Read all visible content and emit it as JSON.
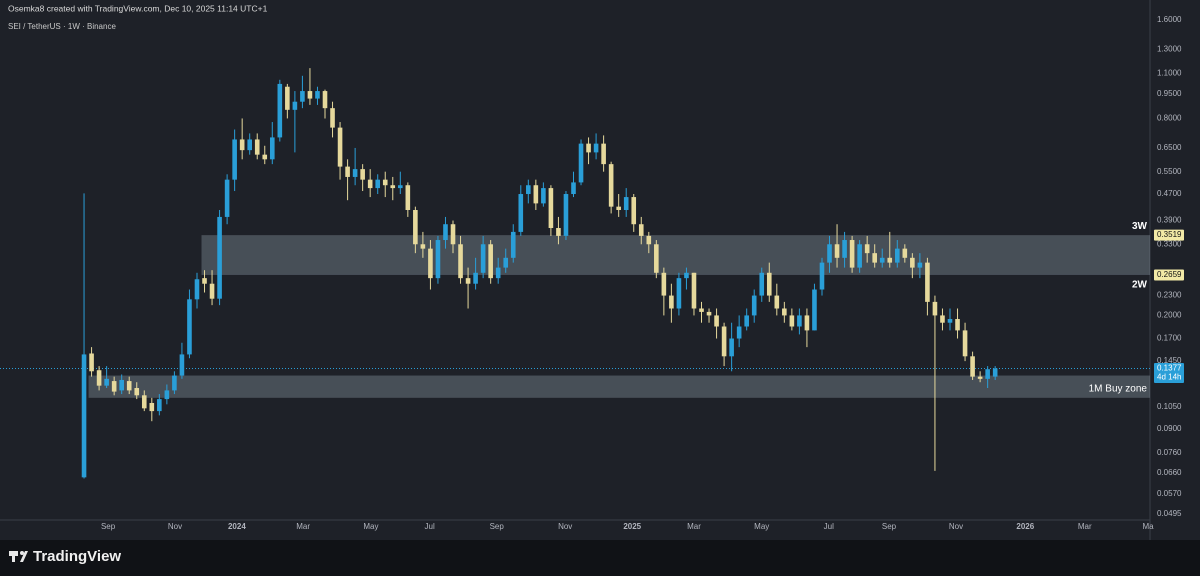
{
  "header": {
    "caption": "Osemka8 created with TradingView.com, Dec 10, 2025 11:14 UTC+1",
    "symbol": "SEI / TetherUS · 1W · Binance"
  },
  "footer": {
    "brand": "TradingView"
  },
  "chart_data": {
    "type": "candlestick",
    "up_color": "#2a9fd8",
    "down_color": "#e6d99c",
    "log_scale": true,
    "candles": [
      [
        0.064,
        0.472,
        0.0635,
        0.152
      ],
      [
        0.153,
        0.16,
        0.13,
        0.135
      ],
      [
        0.136,
        0.14,
        0.118,
        0.122
      ],
      [
        0.122,
        0.14,
        0.12,
        0.128
      ],
      [
        0.126,
        0.13,
        0.114,
        0.117
      ],
      [
        0.118,
        0.132,
        0.115,
        0.127
      ],
      [
        0.126,
        0.13,
        0.115,
        0.118
      ],
      [
        0.12,
        0.125,
        0.111,
        0.114
      ],
      [
        0.114,
        0.118,
        0.102,
        0.104
      ],
      [
        0.108,
        0.112,
        0.095,
        0.102
      ],
      [
        0.102,
        0.115,
        0.099,
        0.111
      ],
      [
        0.111,
        0.123,
        0.107,
        0.118
      ],
      [
        0.118,
        0.135,
        0.115,
        0.131
      ],
      [
        0.131,
        0.165,
        0.128,
        0.152
      ],
      [
        0.152,
        0.24,
        0.148,
        0.224
      ],
      [
        0.224,
        0.27,
        0.21,
        0.258
      ],
      [
        0.26,
        0.275,
        0.235,
        0.25
      ],
      [
        0.25,
        0.275,
        0.215,
        0.225
      ],
      [
        0.225,
        0.42,
        0.215,
        0.4
      ],
      [
        0.4,
        0.54,
        0.38,
        0.52
      ],
      [
        0.52,
        0.74,
        0.48,
        0.69
      ],
      [
        0.69,
        0.8,
        0.6,
        0.64
      ],
      [
        0.64,
        0.72,
        0.62,
        0.69
      ],
      [
        0.69,
        0.72,
        0.6,
        0.62
      ],
      [
        0.62,
        0.66,
        0.58,
        0.6
      ],
      [
        0.6,
        0.78,
        0.58,
        0.7
      ],
      [
        0.7,
        1.05,
        0.68,
        1.02
      ],
      [
        1.0,
        1.02,
        0.8,
        0.85
      ],
      [
        0.85,
        0.97,
        0.63,
        0.9
      ],
      [
        0.9,
        1.08,
        0.86,
        0.97
      ],
      [
        0.97,
        1.14,
        0.88,
        0.92
      ],
      [
        0.92,
        1.0,
        0.88,
        0.97
      ],
      [
        0.97,
        0.98,
        0.8,
        0.86
      ],
      [
        0.86,
        0.9,
        0.7,
        0.75
      ],
      [
        0.75,
        0.78,
        0.52,
        0.57
      ],
      [
        0.57,
        0.6,
        0.45,
        0.53
      ],
      [
        0.53,
        0.65,
        0.5,
        0.56
      ],
      [
        0.56,
        0.58,
        0.48,
        0.52
      ],
      [
        0.52,
        0.56,
        0.46,
        0.49
      ],
      [
        0.49,
        0.54,
        0.47,
        0.52
      ],
      [
        0.52,
        0.55,
        0.46,
        0.5
      ],
      [
        0.5,
        0.53,
        0.45,
        0.49
      ],
      [
        0.49,
        0.55,
        0.47,
        0.5
      ],
      [
        0.5,
        0.51,
        0.4,
        0.42
      ],
      [
        0.42,
        0.43,
        0.31,
        0.33
      ],
      [
        0.33,
        0.36,
        0.3,
        0.32
      ],
      [
        0.32,
        0.34,
        0.24,
        0.26
      ],
      [
        0.26,
        0.35,
        0.25,
        0.34
      ],
      [
        0.34,
        0.4,
        0.32,
        0.38
      ],
      [
        0.38,
        0.39,
        0.31,
        0.33
      ],
      [
        0.33,
        0.35,
        0.25,
        0.26
      ],
      [
        0.26,
        0.28,
        0.21,
        0.25
      ],
      [
        0.25,
        0.3,
        0.24,
        0.27
      ],
      [
        0.27,
        0.35,
        0.26,
        0.33
      ],
      [
        0.33,
        0.34,
        0.25,
        0.26
      ],
      [
        0.26,
        0.3,
        0.25,
        0.28
      ],
      [
        0.28,
        0.32,
        0.27,
        0.3
      ],
      [
        0.3,
        0.38,
        0.29,
        0.36
      ],
      [
        0.36,
        0.5,
        0.35,
        0.47
      ],
      [
        0.47,
        0.52,
        0.44,
        0.5
      ],
      [
        0.5,
        0.52,
        0.42,
        0.44
      ],
      [
        0.44,
        0.51,
        0.43,
        0.49
      ],
      [
        0.49,
        0.5,
        0.35,
        0.37
      ],
      [
        0.37,
        0.4,
        0.33,
        0.35
      ],
      [
        0.35,
        0.48,
        0.34,
        0.47
      ],
      [
        0.47,
        0.55,
        0.46,
        0.51
      ],
      [
        0.51,
        0.69,
        0.5,
        0.67
      ],
      [
        0.67,
        0.7,
        0.58,
        0.63
      ],
      [
        0.63,
        0.72,
        0.6,
        0.67
      ],
      [
        0.67,
        0.71,
        0.55,
        0.58
      ],
      [
        0.58,
        0.59,
        0.41,
        0.43
      ],
      [
        0.43,
        0.47,
        0.4,
        0.42
      ],
      [
        0.42,
        0.49,
        0.4,
        0.46
      ],
      [
        0.46,
        0.47,
        0.36,
        0.38
      ],
      [
        0.38,
        0.4,
        0.33,
        0.35
      ],
      [
        0.35,
        0.36,
        0.31,
        0.33
      ],
      [
        0.33,
        0.34,
        0.26,
        0.27
      ],
      [
        0.27,
        0.28,
        0.2,
        0.23
      ],
      [
        0.23,
        0.25,
        0.19,
        0.21
      ],
      [
        0.21,
        0.27,
        0.2,
        0.26
      ],
      [
        0.26,
        0.28,
        0.24,
        0.27
      ],
      [
        0.27,
        0.27,
        0.2,
        0.21
      ],
      [
        0.21,
        0.22,
        0.19,
        0.205
      ],
      [
        0.205,
        0.21,
        0.19,
        0.2
      ],
      [
        0.2,
        0.21,
        0.17,
        0.185
      ],
      [
        0.185,
        0.19,
        0.14,
        0.15
      ],
      [
        0.15,
        0.19,
        0.135,
        0.17
      ],
      [
        0.17,
        0.2,
        0.16,
        0.185
      ],
      [
        0.185,
        0.21,
        0.18,
        0.2
      ],
      [
        0.2,
        0.24,
        0.19,
        0.23
      ],
      [
        0.23,
        0.28,
        0.22,
        0.27
      ],
      [
        0.27,
        0.29,
        0.22,
        0.23
      ],
      [
        0.23,
        0.25,
        0.2,
        0.21
      ],
      [
        0.21,
        0.22,
        0.19,
        0.2
      ],
      [
        0.2,
        0.21,
        0.18,
        0.185
      ],
      [
        0.185,
        0.21,
        0.175,
        0.2
      ],
      [
        0.2,
        0.21,
        0.16,
        0.18
      ],
      [
        0.18,
        0.25,
        0.18,
        0.24
      ],
      [
        0.24,
        0.3,
        0.23,
        0.29
      ],
      [
        0.29,
        0.35,
        0.27,
        0.33
      ],
      [
        0.33,
        0.38,
        0.28,
        0.3
      ],
      [
        0.3,
        0.36,
        0.28,
        0.34
      ],
      [
        0.34,
        0.35,
        0.27,
        0.28
      ],
      [
        0.28,
        0.34,
        0.27,
        0.33
      ],
      [
        0.33,
        0.35,
        0.29,
        0.31
      ],
      [
        0.31,
        0.33,
        0.28,
        0.29
      ],
      [
        0.29,
        0.32,
        0.28,
        0.3
      ],
      [
        0.3,
        0.36,
        0.28,
        0.29
      ],
      [
        0.29,
        0.34,
        0.28,
        0.32
      ],
      [
        0.32,
        0.33,
        0.29,
        0.3
      ],
      [
        0.3,
        0.31,
        0.26,
        0.28
      ],
      [
        0.28,
        0.31,
        0.26,
        0.29
      ],
      [
        0.29,
        0.3,
        0.2,
        0.22
      ],
      [
        0.22,
        0.23,
        0.067,
        0.2
      ],
      [
        0.2,
        0.21,
        0.18,
        0.19
      ],
      [
        0.19,
        0.21,
        0.18,
        0.195
      ],
      [
        0.195,
        0.21,
        0.17,
        0.18
      ],
      [
        0.18,
        0.19,
        0.145,
        0.15
      ],
      [
        0.15,
        0.155,
        0.127,
        0.13
      ],
      [
        0.13,
        0.135,
        0.125,
        0.128
      ],
      [
        0.128,
        0.14,
        0.12,
        0.137
      ],
      [
        0.13,
        0.14,
        0.127,
        0.1377
      ]
    ],
    "xlim": [
      -11.16,
      141.56
    ],
    "xticks": [
      {
        "value": 3.19,
        "label": "Sep"
      },
      {
        "value": 12.08,
        "label": "Nov"
      },
      {
        "value": 20.3,
        "label": "2024"
      },
      {
        "value": 29.1,
        "label": "Mar"
      },
      {
        "value": 38.1,
        "label": "May"
      },
      {
        "value": 45.9,
        "label": "Jul"
      },
      {
        "value": 54.8,
        "label": "Sep"
      },
      {
        "value": 63.9,
        "label": "Nov"
      },
      {
        "value": 72.8,
        "label": "2025"
      },
      {
        "value": 81.0,
        "label": "Mar"
      },
      {
        "value": 90.0,
        "label": "May"
      },
      {
        "value": 98.9,
        "label": "Jul"
      },
      {
        "value": 106.9,
        "label": "Sep"
      },
      {
        "value": 115.8,
        "label": "Nov"
      },
      {
        "value": 125.0,
        "label": "2026"
      },
      {
        "value": 132.9,
        "label": "Mar"
      },
      {
        "value": 141.3,
        "label": "Ma"
      }
    ],
    "ylim": [
      0.0474,
      1.716
    ],
    "yticks": [
      {
        "value": 1.6,
        "label": "1.6000"
      },
      {
        "value": 1.3,
        "label": "1.3000"
      },
      {
        "value": 1.1,
        "label": "1.1000"
      },
      {
        "value": 0.95,
        "label": "0.9500"
      },
      {
        "value": 0.8,
        "label": "0.8000"
      },
      {
        "value": 0.65,
        "label": "0.6500"
      },
      {
        "value": 0.55,
        "label": "0.5500"
      },
      {
        "value": 0.47,
        "label": "0.4700"
      },
      {
        "value": 0.39,
        "label": "0.3900"
      },
      {
        "value": 0.33,
        "label": "0.3300"
      },
      {
        "value": 0.23,
        "label": "0.2300"
      },
      {
        "value": 0.2,
        "label": "0.2000"
      },
      {
        "value": 0.17,
        "label": "0.1700"
      },
      {
        "value": 0.145,
        "label": "0.1450"
      },
      {
        "value": 0.105,
        "label": "0.1050"
      },
      {
        "value": 0.09,
        "label": "0.0900"
      },
      {
        "value": 0.076,
        "label": "0.0760"
      },
      {
        "value": 0.066,
        "label": "0.0660"
      },
      {
        "value": 0.057,
        "label": "0.0570"
      },
      {
        "value": 0.0495,
        "label": "0.0495"
      }
    ],
    "last_price": 0.1377,
    "countdown": "4d 14h",
    "zones": [
      {
        "from_candle": 16,
        "low": 0.2659,
        "high": 0.3519,
        "high_label": "3W",
        "low_label": "2W"
      },
      {
        "from_candle": 1,
        "low": 0.112,
        "high": 0.131,
        "label": "1M Buy zone"
      }
    ]
  }
}
